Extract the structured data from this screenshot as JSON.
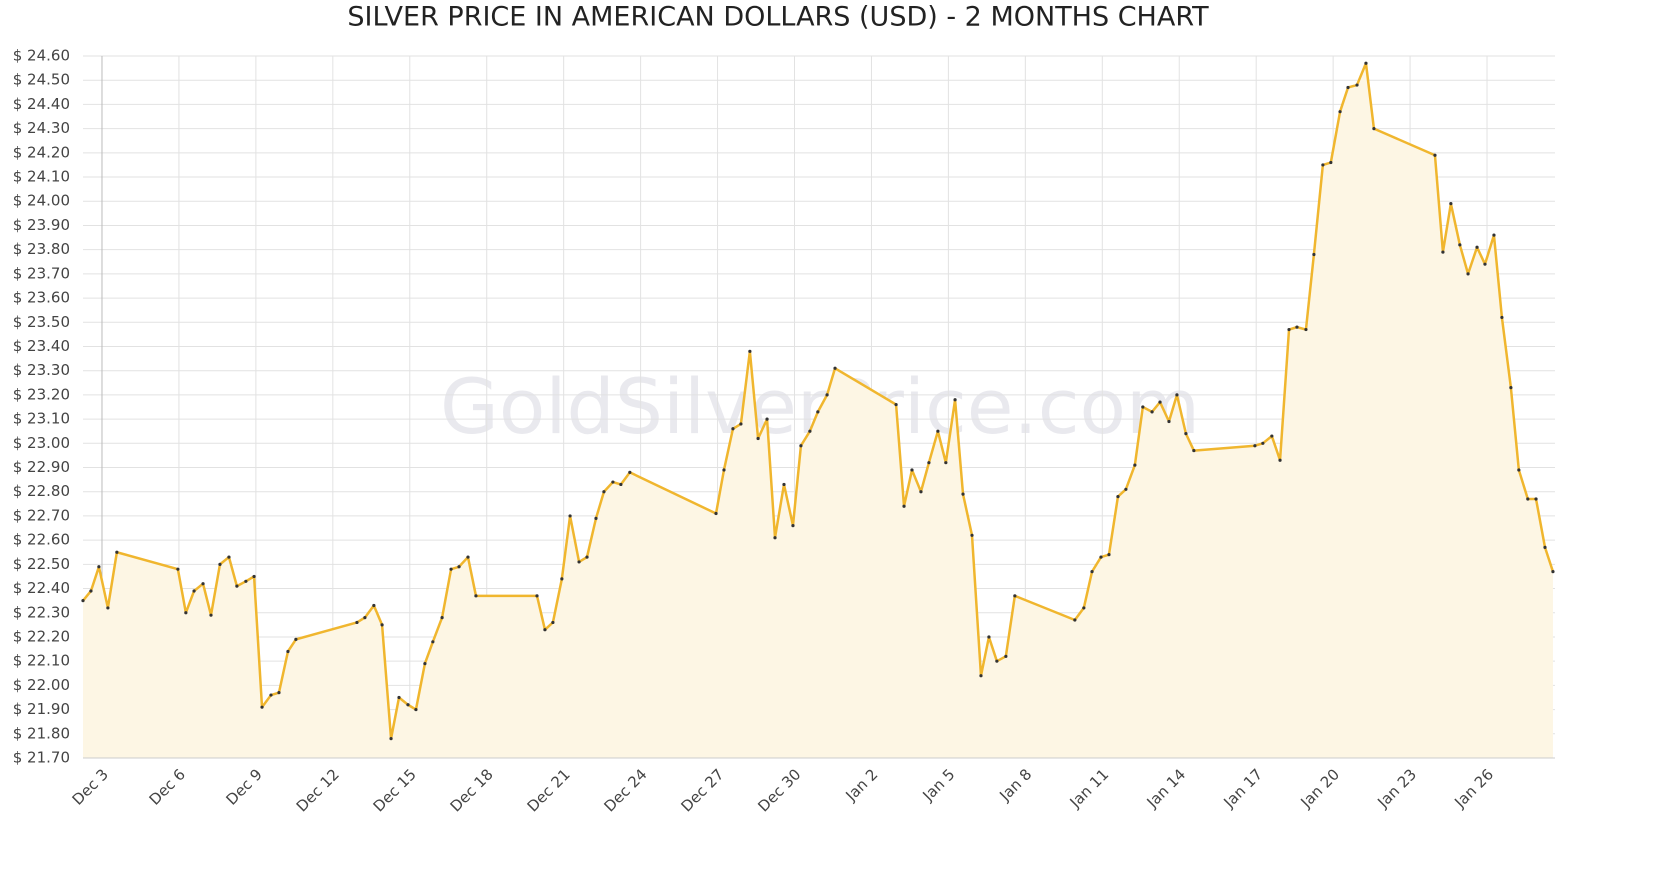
{
  "chart_data": {
    "type": "line",
    "title": "SILVER PRICE IN AMERICAN DOLLARS (USD) - 2 MONTHS CHART",
    "watermark": "GoldSilverPrice.com",
    "xlim": [
      -0.74,
      56.65
    ],
    "ylim": [
      21.7,
      24.6
    ],
    "grid": true,
    "xticks": [
      {
        "value": 0,
        "label": "Dec 3"
      },
      {
        "value": 3,
        "label": "Dec 6"
      },
      {
        "value": 6,
        "label": "Dec 9"
      },
      {
        "value": 9,
        "label": "Dec 12"
      },
      {
        "value": 12,
        "label": "Dec 15"
      },
      {
        "value": 15,
        "label": "Dec 18"
      },
      {
        "value": 18,
        "label": "Dec 21"
      },
      {
        "value": 21,
        "label": "Dec 24"
      },
      {
        "value": 24,
        "label": "Dec 27"
      },
      {
        "value": 27,
        "label": "Dec 30"
      },
      {
        "value": 30,
        "label": "Jan 2"
      },
      {
        "value": 33,
        "label": "Jan 5"
      },
      {
        "value": 36,
        "label": "Jan 8"
      },
      {
        "value": 39,
        "label": "Jan 11"
      },
      {
        "value": 42,
        "label": "Jan 14"
      },
      {
        "value": 45,
        "label": "Jan 17"
      },
      {
        "value": 48,
        "label": "Jan 20"
      },
      {
        "value": 51,
        "label": "Jan 23"
      },
      {
        "value": 54,
        "label": "Jan 26"
      }
    ],
    "yticks": [
      {
        "value": 21.7,
        "label": "$ 21.70"
      },
      {
        "value": 21.8,
        "label": "$ 21.80"
      },
      {
        "value": 21.9,
        "label": "$ 21.90"
      },
      {
        "value": 22.0,
        "label": "$ 22.00"
      },
      {
        "value": 22.1,
        "label": "$ 22.10"
      },
      {
        "value": 22.2,
        "label": "$ 22.20"
      },
      {
        "value": 22.3,
        "label": "$ 22.30"
      },
      {
        "value": 22.4,
        "label": "$ 22.40"
      },
      {
        "value": 22.5,
        "label": "$ 22.50"
      },
      {
        "value": 22.6,
        "label": "$ 22.60"
      },
      {
        "value": 22.7,
        "label": "$ 22.70"
      },
      {
        "value": 22.8,
        "label": "$ 22.80"
      },
      {
        "value": 22.9,
        "label": "$ 22.90"
      },
      {
        "value": 23.0,
        "label": "$ 23.00"
      },
      {
        "value": 23.1,
        "label": "$ 23.10"
      },
      {
        "value": 23.2,
        "label": "$ 23.20"
      },
      {
        "value": 23.3,
        "label": "$ 23.30"
      },
      {
        "value": 23.4,
        "label": "$ 23.40"
      },
      {
        "value": 23.5,
        "label": "$ 23.50"
      },
      {
        "value": 23.6,
        "label": "$ 23.60"
      },
      {
        "value": 23.7,
        "label": "$ 23.70"
      },
      {
        "value": 23.8,
        "label": "$ 23.80"
      },
      {
        "value": 23.9,
        "label": "$ 23.90"
      },
      {
        "value": 24.0,
        "label": "$ 24.00"
      },
      {
        "value": 24.1,
        "label": "$ 24.10"
      },
      {
        "value": 24.2,
        "label": "$ 24.20"
      },
      {
        "value": 24.3,
        "label": "$ 24.30"
      },
      {
        "value": 24.4,
        "label": "$ 24.40"
      },
      {
        "value": 24.5,
        "label": "$ 24.50"
      },
      {
        "value": 24.6,
        "label": "$ 24.60"
      }
    ],
    "color": "#f0b62e",
    "fill_color": "#fdf6e4",
    "x": [
      -0.74,
      -0.43,
      -0.12,
      0.23,
      0.58,
      2.96,
      3.27,
      3.59,
      3.94,
      4.25,
      4.6,
      4.95,
      5.26,
      5.61,
      5.93,
      6.24,
      6.59,
      6.9,
      7.25,
      7.56,
      9.94,
      10.25,
      10.6,
      10.92,
      11.27,
      11.58,
      11.93,
      12.24,
      12.59,
      12.9,
      13.26,
      13.61,
      13.92,
      14.27,
      14.58,
      16.96,
      17.27,
      17.58,
      17.93,
      18.25,
      18.6,
      18.91,
      19.26,
      19.57,
      19.92,
      20.23,
      20.58,
      23.94,
      24.25,
      24.6,
      24.91,
      25.26,
      25.58,
      25.93,
      26.24,
      26.59,
      26.94,
      27.25,
      27.6,
      27.91,
      28.27,
      28.58,
      30.96,
      31.27,
      31.58,
      31.93,
      32.24,
      32.59,
      32.9,
      33.26,
      33.57,
      33.92,
      34.27,
      34.58,
      34.89,
      35.24,
      35.59,
      37.93,
      38.28,
      38.6,
      38.95,
      39.26,
      39.61,
      39.92,
      40.27,
      40.58,
      40.94,
      41.25,
      41.6,
      41.91,
      42.26,
      42.57,
      44.95,
      45.26,
      45.61,
      45.93,
      46.28,
      46.59,
      46.94,
      47.25,
      47.6,
      47.91,
      48.27,
      48.58,
      48.93,
      49.28,
      49.59,
      51.97,
      52.28,
      52.59,
      52.94,
      53.26,
      53.61,
      53.92,
      54.27,
      54.58,
      54.93,
      55.24,
      55.59,
      55.91,
      56.26,
      56.57
    ],
    "values": [
      22.35,
      22.39,
      22.49,
      22.32,
      22.55,
      22.48,
      22.3,
      22.39,
      22.42,
      22.29,
      22.5,
      22.53,
      22.41,
      22.43,
      22.45,
      21.91,
      21.96,
      21.97,
      22.14,
      22.19,
      22.26,
      22.28,
      22.33,
      22.25,
      21.78,
      21.95,
      21.92,
      21.9,
      22.09,
      22.18,
      22.28,
      22.48,
      22.49,
      22.53,
      22.37,
      22.37,
      22.23,
      22.26,
      22.44,
      22.7,
      22.51,
      22.53,
      22.69,
      22.8,
      22.84,
      22.83,
      22.88,
      22.71,
      22.89,
      23.06,
      23.08,
      23.38,
      23.02,
      23.1,
      22.61,
      22.83,
      22.66,
      22.99,
      23.05,
      23.13,
      23.2,
      23.31,
      23.16,
      22.74,
      22.89,
      22.8,
      22.92,
      23.05,
      22.92,
      23.18,
      22.79,
      22.62,
      22.04,
      22.2,
      22.1,
      22.12,
      22.37,
      22.27,
      22.32,
      22.47,
      22.53,
      22.54,
      22.78,
      22.81,
      22.91,
      23.15,
      23.13,
      23.17,
      23.09,
      23.2,
      23.04,
      22.97,
      22.99,
      23.0,
      23.03,
      22.93,
      23.47,
      23.48,
      23.47,
      23.78,
      24.15,
      24.16,
      24.37,
      24.47,
      24.48,
      24.57,
      24.3,
      24.19,
      23.79,
      23.99,
      23.82,
      23.7,
      23.81,
      23.74,
      23.86,
      23.52,
      23.23,
      22.89,
      22.77,
      22.77,
      22.57,
      22.47
    ]
  }
}
